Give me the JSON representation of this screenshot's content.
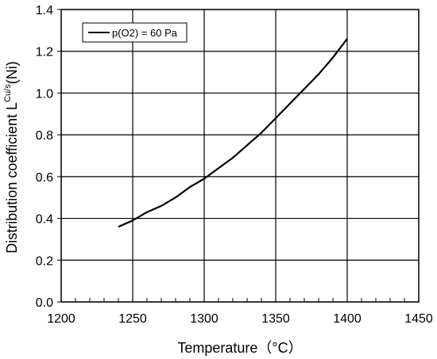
{
  "chart_data": {
    "type": "line",
    "xlabel": "Temperature（°C）",
    "ylabel_main": "Distribution coefficient L",
    "ylabel_sup": "Cu/s",
    "ylabel_tail": "(Ni)",
    "xlim": [
      1200,
      1450
    ],
    "ylim": [
      0,
      1.4
    ],
    "xticks": [
      1200,
      1250,
      1300,
      1350,
      1400,
      1450
    ],
    "yticks": [
      0.0,
      0.2,
      0.4,
      0.6,
      0.8,
      1.0,
      1.2,
      1.4
    ],
    "xtick_labels": [
      "1200",
      "1250",
      "1300",
      "1350",
      "1400",
      "1450"
    ],
    "ytick_labels": [
      "0.0",
      "0.2",
      "0.4",
      "0.6",
      "0.8",
      "1.0",
      "1.2",
      "1.4"
    ],
    "grid": true,
    "legend_position": "top-left",
    "series": [
      {
        "name": "p(O2) = 60 Pa",
        "color": "#000000",
        "x": [
          1240,
          1250,
          1260,
          1270,
          1280,
          1290,
          1300,
          1310,
          1320,
          1330,
          1340,
          1350,
          1360,
          1370,
          1380,
          1390,
          1400
        ],
        "y": [
          0.36,
          0.39,
          0.43,
          0.46,
          0.5,
          0.55,
          0.59,
          0.64,
          0.69,
          0.75,
          0.81,
          0.88,
          0.95,
          1.02,
          1.09,
          1.17,
          1.26
        ]
      }
    ]
  }
}
